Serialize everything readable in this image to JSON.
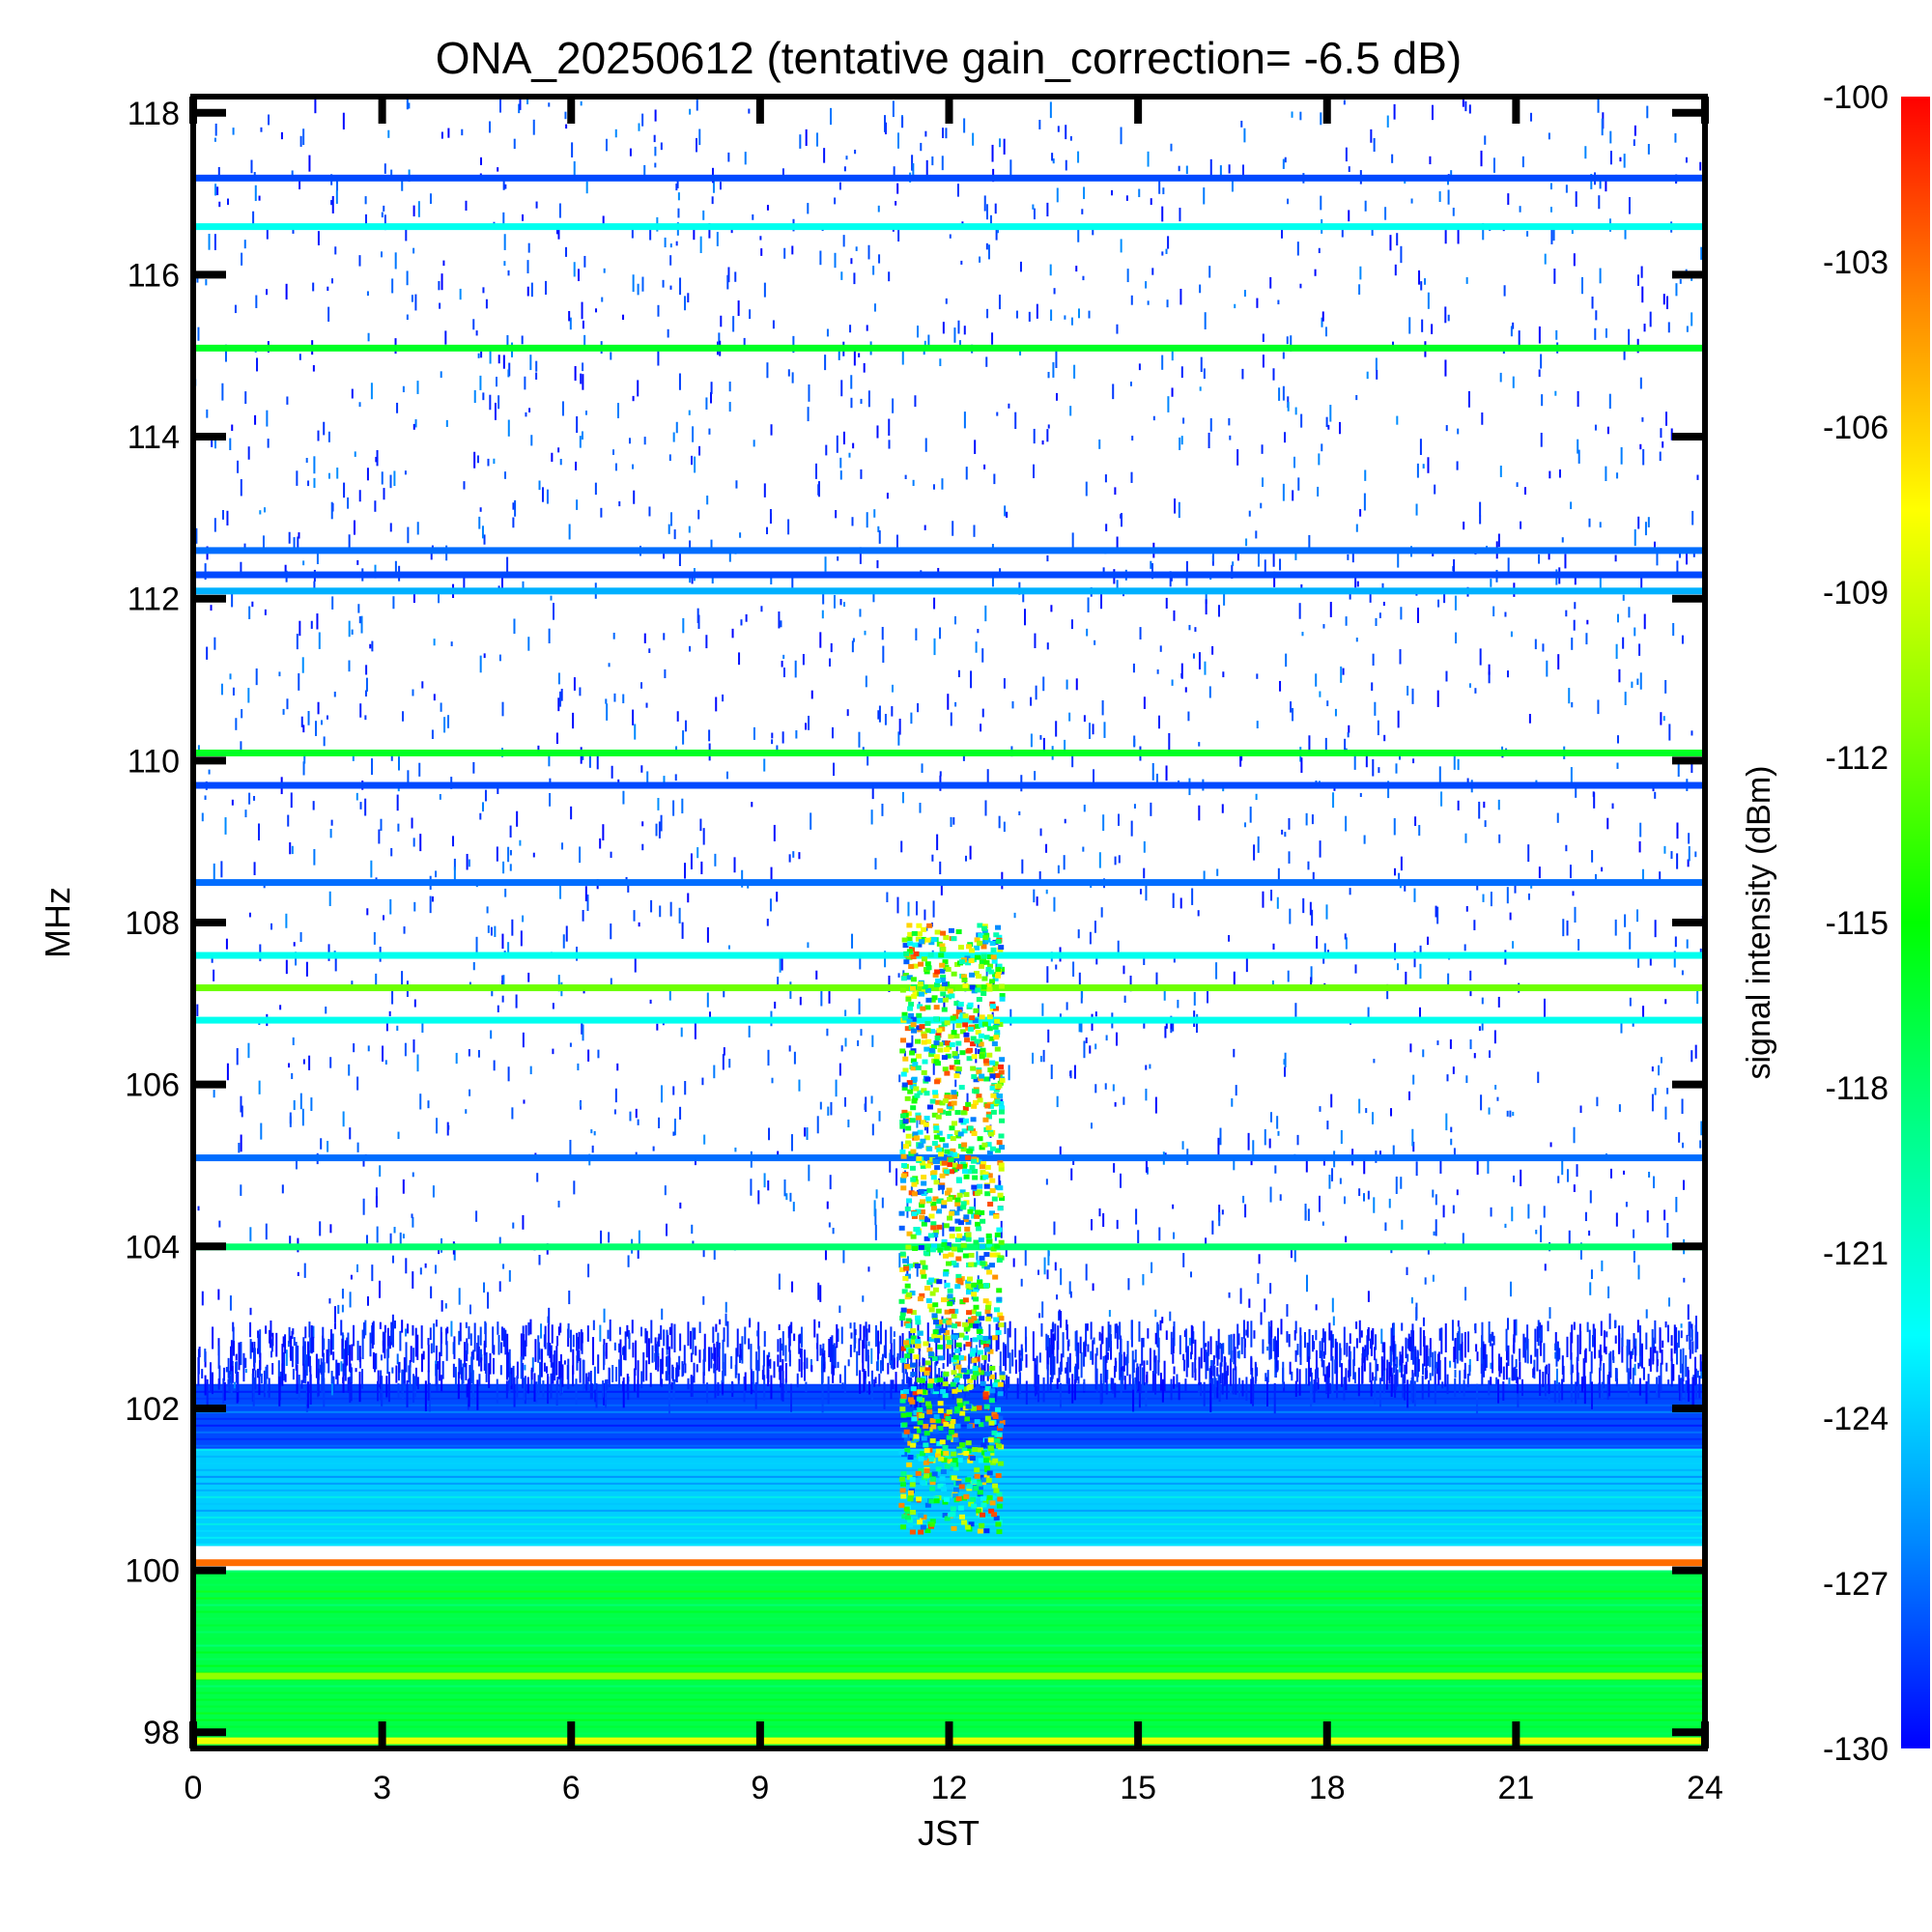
{
  "chart_data": {
    "type": "heatmap",
    "title": "ONA_20250612 (tentative gain_correction= -6.5 dB)",
    "xlabel": "JST",
    "ylabel": "MHz",
    "colorbar_label": "signal intensity (dBm)",
    "xlim": [
      0,
      24
    ],
    "ylim": [
      97.8,
      118.2
    ],
    "clim": [
      -130,
      -100
    ],
    "xticks": [
      "0",
      "3",
      "6",
      "9",
      "12",
      "15",
      "18",
      "21",
      "24"
    ],
    "yticks": [
      "98",
      "100",
      "102",
      "104",
      "106",
      "108",
      "110",
      "112",
      "114",
      "116",
      "118"
    ],
    "colorbar_ticks": [
      "-100",
      "-103",
      "-106",
      "-109",
      "-112",
      "-115",
      "-118",
      "-121",
      "-124",
      "-127",
      "-130"
    ],
    "colormap": [
      "#0000ff",
      "#0088ff",
      "#00ffff",
      "#00ff88",
      "#00ff00",
      "#88ff00",
      "#ffff00",
      "#ff8800",
      "#ff0000"
    ],
    "horizontal_bands": [
      {
        "freq": 117.2,
        "level": -128
      },
      {
        "freq": 116.6,
        "level": -122
      },
      {
        "freq": 115.1,
        "level": -116
      },
      {
        "freq": 112.6,
        "level": -127
      },
      {
        "freq": 112.3,
        "level": -128
      },
      {
        "freq": 112.1,
        "level": -125
      },
      {
        "freq": 110.1,
        "level": -116
      },
      {
        "freq": 109.7,
        "level": -128
      },
      {
        "freq": 108.5,
        "level": -127
      },
      {
        "freq": 107.6,
        "level": -122
      },
      {
        "freq": 107.2,
        "level": -112
      },
      {
        "freq": 106.8,
        "level": -122
      },
      {
        "freq": 105.1,
        "level": -127
      },
      {
        "freq": 104.0,
        "level": -118
      },
      {
        "freq": 100.1,
        "level": -103
      },
      {
        "freq": 98.7,
        "level": -111
      },
      {
        "freq": 97.9,
        "level": -108
      }
    ],
    "noise_floor_regions": [
      {
        "freq_from": 102.3,
        "freq_to": 101.5,
        "level": -128
      },
      {
        "freq_from": 101.5,
        "freq_to": 100.3,
        "level": -124
      },
      {
        "freq_from": 100.0,
        "freq_to": 97.8,
        "level": -117
      }
    ],
    "burst_event": {
      "time_from": 11.2,
      "time_to": 12.8,
      "freq_from": 100.5,
      "freq_to": 108.0,
      "peak_level": -101
    }
  }
}
